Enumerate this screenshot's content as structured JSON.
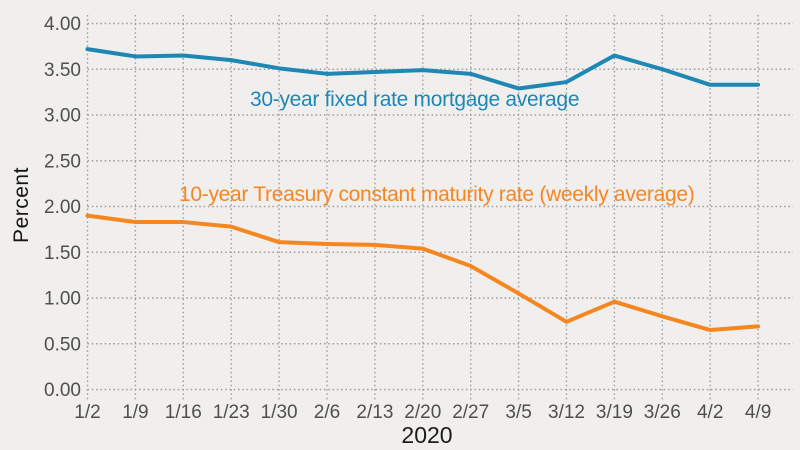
{
  "figure": {
    "background": "#f0efed",
    "grid_color": "#9c9c9c",
    "tick_label_color": "#4f4f4f"
  },
  "chart_data": {
    "type": "line",
    "title": "",
    "xlabel": "2020",
    "ylabel": "Percent",
    "x_categories": [
      "1/2",
      "1/9",
      "1/16",
      "1/23",
      "1/30",
      "2/6",
      "2/13",
      "2/20",
      "2/27",
      "3/5",
      "3/12",
      "3/19",
      "3/26",
      "4/2",
      "4/9"
    ],
    "ylim": [
      0,
      4
    ],
    "ytick_labels": [
      "0.00",
      "0.50",
      "1.00",
      "1.50",
      "2.00",
      "2.50",
      "3.00",
      "3.50",
      "4.00"
    ],
    "ytick_values": [
      0,
      0.5,
      1,
      1.5,
      2,
      2.5,
      3,
      3.5,
      4
    ],
    "grid": true,
    "grid_style": "dotted",
    "legend_position": "inline-labels",
    "series": [
      {
        "name": "30-year fixed rate mortgage average",
        "color": "#1f87b3",
        "values": [
          3.72,
          3.64,
          3.65,
          3.6,
          3.51,
          3.45,
          3.47,
          3.49,
          3.45,
          3.29,
          3.36,
          3.65,
          3.5,
          3.33,
          3.33
        ]
      },
      {
        "name": "10-year Treasury constant maturity rate (weekly average)",
        "color": "#f6861f",
        "values": [
          1.9,
          1.83,
          1.83,
          1.78,
          1.61,
          1.59,
          1.58,
          1.54,
          1.35,
          1.05,
          0.74,
          0.96,
          0.8,
          0.65,
          0.69
        ]
      }
    ]
  }
}
